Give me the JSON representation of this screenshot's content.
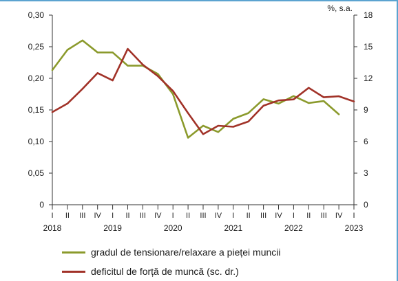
{
  "chart_data": {
    "type": "line",
    "right_unit_label": "%, s.a.",
    "x_quarter_labels": [
      "I",
      "II",
      "III",
      "IV",
      "I",
      "II",
      "III",
      "IV",
      "I",
      "II",
      "III",
      "IV",
      "I",
      "II",
      "III",
      "IV",
      "I",
      "II",
      "III",
      "IV",
      "I"
    ],
    "x_year_labels": [
      {
        "label": "2018",
        "quarter_index": 0
      },
      {
        "label": "2019",
        "quarter_index": 4
      },
      {
        "label": "2020",
        "quarter_index": 8
      },
      {
        "label": "2021",
        "quarter_index": 12
      },
      {
        "label": "2022",
        "quarter_index": 16
      },
      {
        "label": "2023",
        "quarter_index": 20
      }
    ],
    "y_left": {
      "min": 0,
      "max": 0.3,
      "ticks": [
        "0",
        "0,05",
        "0,10",
        "0,15",
        "0,20",
        "0,25",
        "0,30"
      ]
    },
    "y_right": {
      "min": 0,
      "max": 18,
      "ticks": [
        "0",
        "3",
        "6",
        "9",
        "12",
        "15",
        "18"
      ]
    },
    "series": [
      {
        "name": "gradul de tensionare/relaxare a pieței muncii",
        "axis": "left",
        "color": "#8b9a2c",
        "x": [
          0,
          1,
          2,
          3,
          4,
          5,
          6,
          7,
          8,
          9,
          10,
          11,
          12,
          13,
          14,
          15,
          16,
          17,
          18,
          19
        ],
        "values": [
          0.213,
          0.245,
          0.26,
          0.241,
          0.241,
          0.22,
          0.22,
          0.207,
          0.175,
          0.106,
          0.125,
          0.115,
          0.136,
          0.145,
          0.167,
          0.16,
          0.172,
          0.161,
          0.164,
          0.143
        ]
      },
      {
        "name": "deficitul de forță de muncă (sc. dr.)",
        "axis": "right",
        "color": "#a13228",
        "x": [
          0,
          1,
          2,
          3,
          4,
          5,
          6,
          7,
          8,
          9,
          10,
          11,
          12,
          13,
          14,
          15,
          16,
          17,
          18,
          19,
          20
        ],
        "values": [
          8.8,
          9.6,
          11.0,
          12.5,
          11.8,
          14.8,
          13.3,
          12.2,
          10.8,
          8.7,
          6.7,
          7.5,
          7.4,
          7.9,
          9.4,
          9.9,
          10.0,
          11.1,
          10.2,
          10.3,
          9.8
        ]
      }
    ]
  },
  "legend": {
    "items": [
      {
        "label": "gradul de tensionare/relaxare a pieței muncii",
        "color": "#8b9a2c"
      },
      {
        "label": "deficitul de forță de muncă (sc. dr.)",
        "color": "#a13228"
      }
    ]
  }
}
